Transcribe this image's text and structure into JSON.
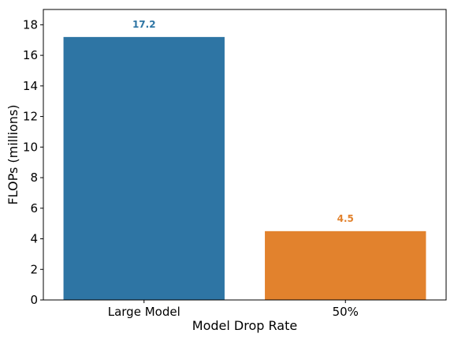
{
  "chart_data": {
    "type": "bar",
    "categories": [
      "Large Model",
      "50%"
    ],
    "values": [
      17.2,
      4.5
    ],
    "data_labels": [
      "17.2",
      "4.5"
    ],
    "colors": [
      "#2e75a4",
      "#e2822d"
    ],
    "title": "",
    "xlabel": "Model Drop Rate",
    "ylabel": "FLOPs (millions)",
    "ylim": [
      0,
      19
    ],
    "yticks": [
      0,
      2,
      4,
      6,
      8,
      10,
      12,
      14,
      16,
      18
    ],
    "ytick_labels": [
      "0",
      "2",
      "4",
      "6",
      "8",
      "10",
      "12",
      "14",
      "16",
      "18"
    ],
    "grid": false,
    "legend": "none"
  }
}
